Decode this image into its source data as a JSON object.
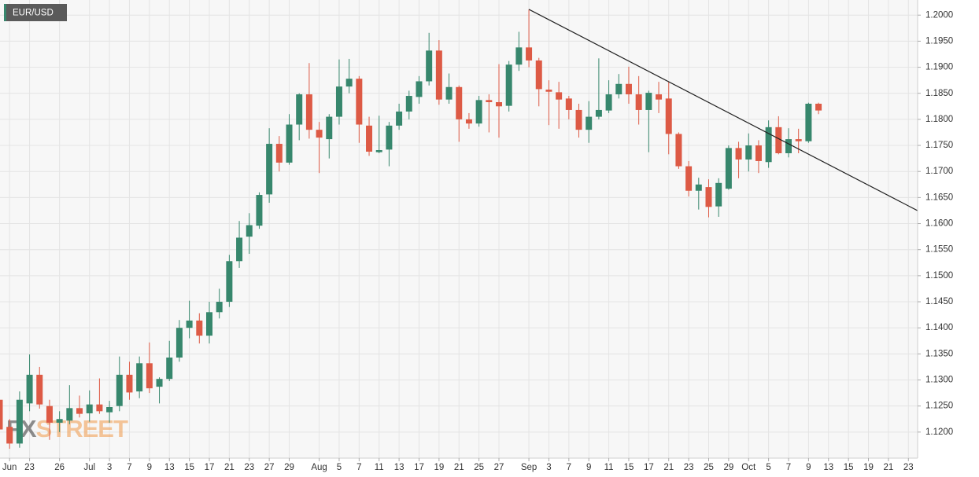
{
  "chart_data": {
    "type": "candlestick",
    "title": "EUR/USD",
    "watermark": [
      "FX",
      "STREET"
    ],
    "up_color": "#37876d",
    "down_color": "#dd5a45",
    "grid": true,
    "categories": [
      null,
      "Jun",
      null,
      "23",
      null,
      null,
      "26",
      null,
      null,
      "Jul",
      null,
      "3",
      null,
      "7",
      null,
      "9",
      null,
      "13",
      null,
      "15",
      null,
      "17",
      null,
      "21",
      null,
      "23",
      null,
      "27",
      null,
      "29",
      null,
      null,
      "Aug",
      null,
      "5",
      null,
      "7",
      null,
      "11",
      null,
      "13",
      null,
      "17",
      null,
      "19",
      null,
      "21",
      null,
      "25",
      null,
      "27",
      null,
      null,
      "Sep",
      null,
      "3",
      null,
      "7",
      null,
      "9",
      null,
      "11",
      null,
      "15",
      null,
      "17",
      null,
      "21",
      null,
      "23",
      null,
      "25",
      null,
      "29",
      null,
      "Oct",
      null,
      "5",
      null,
      "7",
      null,
      "9",
      null,
      "13",
      null,
      "15",
      null,
      "19",
      null,
      "21",
      null,
      "23"
    ],
    "open": [
      1.1262,
      1.121,
      1.1178,
      1.1255,
      1.131,
      1.125,
      1.1218,
      1.1222,
      1.1246,
      1.1236,
      1.1253,
      1.1238,
      1.125,
      1.131,
      1.1278,
      1.1332,
      1.1287,
      1.1302,
      1.1343,
      1.14,
      1.1414,
      1.1385,
      1.143,
      1.145,
      1.1528,
      1.1575,
      1.1596,
      1.1656,
      1.1753,
      1.1717,
      1.179,
      1.1848,
      1.178,
      1.1762,
      1.1805,
      1.1863,
      1.1878,
      1.1788,
      1.1737,
      1.1742,
      1.1788,
      1.1815,
      1.1843,
      1.1873,
      1.1932,
      1.1838,
      1.1862,
      1.18,
      1.1792,
      1.1837,
      1.1833,
      1.1826,
      1.1905,
      1.1938,
      1.1913,
      1.1857,
      1.1852,
      1.184,
      1.1818,
      1.178,
      1.1805,
      1.1817,
      1.1848,
      1.1868,
      1.1848,
      1.1818,
      1.1848,
      1.184,
      1.1772,
      1.171,
      1.1663,
      1.167,
      1.1633,
      1.1667,
      1.1745,
      1.1723,
      1.175,
      1.1718,
      1.1785,
      1.1735,
      1.1762,
      1.1758,
      1.183,
      null,
      null,
      null,
      null,
      null,
      null,
      null,
      null,
      null
    ],
    "high": [
      1.1268,
      1.1225,
      1.1278,
      1.1349,
      1.1325,
      1.1262,
      1.124,
      1.129,
      1.127,
      1.128,
      1.1303,
      1.126,
      1.1345,
      1.1335,
      1.1345,
      1.1372,
      1.1305,
      1.1375,
      1.1415,
      1.1452,
      1.1428,
      1.145,
      1.1475,
      1.154,
      1.1605,
      1.162,
      1.166,
      1.1783,
      1.1768,
      1.181,
      1.185,
      1.1908,
      1.1795,
      1.181,
      1.1915,
      1.1916,
      1.1883,
      1.1805,
      1.1807,
      1.1795,
      1.183,
      1.1855,
      1.1883,
      1.1966,
      1.1952,
      1.1888,
      1.1865,
      1.1812,
      1.1845,
      1.1848,
      1.1906,
      1.1912,
      1.1968,
      1.2011,
      1.1918,
      1.1875,
      1.1872,
      1.1845,
      1.183,
      1.1835,
      1.1917,
      1.1875,
      1.1887,
      1.1901,
      1.1883,
      1.1855,
      1.1872,
      1.1872,
      1.1775,
      1.172,
      1.1688,
      1.1685,
      1.1687,
      1.175,
      1.1757,
      1.1773,
      1.176,
      1.1798,
      1.1806,
      1.1783,
      1.1782,
      1.1832,
      1.1832,
      null,
      null,
      null,
      null,
      null,
      null,
      null,
      null,
      null
    ],
    "low": [
      1.119,
      1.1168,
      1.117,
      1.124,
      1.1245,
      1.1185,
      1.12,
      1.1215,
      1.1228,
      1.122,
      1.1235,
      1.1218,
      1.124,
      1.1262,
      1.1265,
      1.1275,
      1.1255,
      1.1298,
      1.1335,
      1.138,
      1.137,
      1.137,
      1.1418,
      1.144,
      1.1515,
      1.1542,
      1.159,
      1.164,
      1.17,
      1.1713,
      1.176,
      1.1763,
      1.1697,
      1.1725,
      1.179,
      1.185,
      1.1755,
      1.173,
      1.1735,
      1.171,
      1.178,
      1.18,
      1.183,
      1.1865,
      1.1828,
      1.183,
      1.1757,
      1.1782,
      1.1786,
      1.1775,
      1.1765,
      1.1815,
      1.1893,
      1.19,
      1.1825,
      1.1789,
      1.1782,
      1.18,
      1.1765,
      1.1755,
      1.18,
      1.1812,
      1.184,
      1.183,
      1.179,
      1.1737,
      1.1812,
      1.1733,
      1.1705,
      1.1652,
      1.1627,
      1.1612,
      1.1613,
      1.1665,
      1.1687,
      1.17,
      1.1697,
      1.1707,
      1.1733,
      1.1727,
      1.1735,
      1.1755,
      1.181,
      null,
      null,
      null,
      null,
      null,
      null,
      null,
      null,
      null
    ],
    "close": [
      1.1205,
      1.1178,
      1.1262,
      1.131,
      1.1253,
      1.1218,
      1.1225,
      1.1246,
      1.1235,
      1.1253,
      1.124,
      1.1248,
      1.131,
      1.1276,
      1.1332,
      1.1284,
      1.1302,
      1.1343,
      1.14,
      1.1414,
      1.1385,
      1.143,
      1.145,
      1.1528,
      1.1573,
      1.1597,
      1.1655,
      1.1753,
      1.1717,
      1.179,
      1.1848,
      1.178,
      1.1765,
      1.1805,
      1.1863,
      1.1878,
      1.179,
      1.1738,
      1.1741,
      1.1788,
      1.1815,
      1.1845,
      1.1873,
      1.1932,
      1.1838,
      1.1862,
      1.18,
      1.1792,
      1.1837,
      1.1833,
      1.1825,
      1.1905,
      1.1938,
      1.1913,
      1.1858,
      1.1853,
      1.1838,
      1.1818,
      1.178,
      1.1805,
      1.1818,
      1.1848,
      1.1868,
      1.1848,
      1.1818,
      1.1851,
      1.1838,
      1.1772,
      1.171,
      1.1663,
      1.1675,
      1.1632,
      1.1678,
      1.1745,
      1.1723,
      1.175,
      1.172,
      1.1785,
      1.1735,
      1.1762,
      1.1758,
      1.183,
      1.1817,
      null,
      null,
      null,
      null,
      null,
      null,
      null,
      null,
      null
    ],
    "trendline": {
      "color": "#222222",
      "values": [
        null,
        null,
        null,
        null,
        null,
        null,
        null,
        null,
        null,
        null,
        null,
        null,
        null,
        null,
        null,
        null,
        null,
        null,
        null,
        null,
        null,
        null,
        null,
        null,
        null,
        null,
        null,
        null,
        null,
        null,
        null,
        null,
        null,
        null,
        null,
        null,
        null,
        null,
        null,
        null,
        null,
        null,
        null,
        null,
        null,
        null,
        null,
        null,
        null,
        null,
        null,
        null,
        null,
        1.2011,
        null,
        null,
        null,
        null,
        null,
        null,
        null,
        null,
        null,
        null,
        null,
        null,
        null,
        null,
        null,
        null,
        null,
        null,
        null,
        null,
        null,
        null,
        null,
        null,
        null,
        null,
        null,
        null,
        null,
        null,
        null,
        null,
        null,
        null,
        null,
        null,
        null,
        1.1634
      ]
    },
    "ylim": [
      1.115,
      1.2029
    ],
    "yticks": [
      {
        "value": 1.12,
        "label": "1.1200"
      },
      {
        "value": 1.125,
        "label": "1.1250"
      },
      {
        "value": 1.13,
        "label": "1.1300"
      },
      {
        "value": 1.135,
        "label": "1.1350"
      },
      {
        "value": 1.14,
        "label": "1.1400"
      },
      {
        "value": 1.145,
        "label": "1.1450"
      },
      {
        "value": 1.15,
        "label": "1.1500"
      },
      {
        "value": 1.155,
        "label": "1.1550"
      },
      {
        "value": 1.16,
        "label": "1.1600"
      },
      {
        "value": 1.165,
        "label": "1.1650"
      },
      {
        "value": 1.17,
        "label": "1.1700"
      },
      {
        "value": 1.175,
        "label": "1.1750"
      },
      {
        "value": 1.18,
        "label": "1.1800"
      },
      {
        "value": 1.185,
        "label": "1.1850"
      },
      {
        "value": 1.19,
        "label": "1.1900"
      },
      {
        "value": 1.195,
        "label": "1.1950"
      },
      {
        "value": 1.2,
        "label": "1.2000"
      }
    ]
  }
}
